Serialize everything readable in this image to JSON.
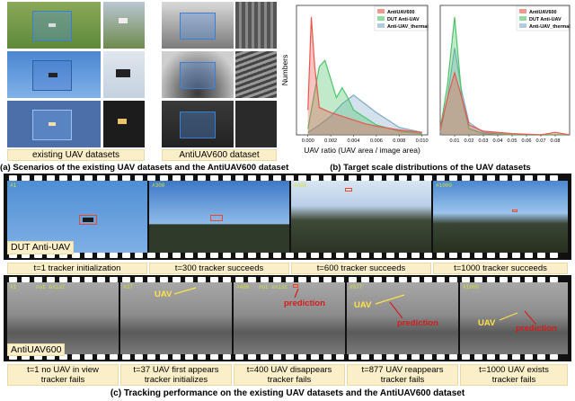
{
  "panel_a": {
    "caption": "(a) Scenarios of the existing UAV datasets and the AntiUAV600 dataset",
    "left_label": "existing UAV datasets",
    "right_label": "AntiUAV600 dataset"
  },
  "panel_b": {
    "caption": "(b) Target scale distributions of the UAV datasets"
  },
  "chart_data": [
    {
      "type": "area",
      "xlabel": "UAV ratio (UAV area / image area)",
      "ylabel": "Numbers",
      "xlim": [
        -0.001,
        0.0105
      ],
      "x_ticks": [
        "0.000",
        "0.002",
        "0.004",
        "0.006",
        "0.008",
        "0.010"
      ],
      "legend": "top-right",
      "series": [
        {
          "name": "AntiUAV600",
          "color": "#e8574d",
          "x": [
            0,
            0.0003,
            0.0006,
            0.001,
            0.002,
            0.003,
            0.004,
            0.005,
            0.006,
            0.008,
            0.01
          ],
          "values": [
            0.2,
            0.95,
            0.55,
            0.22,
            0.18,
            0.15,
            0.12,
            0.09,
            0.07,
            0.04,
            0.02
          ]
        },
        {
          "name": "DUT Anti-UAV",
          "color": "#4cc46b",
          "x": [
            0,
            0.0005,
            0.001,
            0.0015,
            0.002,
            0.0025,
            0.003,
            0.0035,
            0.004,
            0.006,
            0.008,
            0.01
          ],
          "values": [
            0.05,
            0.3,
            0.55,
            0.6,
            0.45,
            0.3,
            0.38,
            0.3,
            0.2,
            0.08,
            0.03,
            0.01
          ]
        },
        {
          "name": "Anti-UAV_thermal",
          "color": "#7fa8c9",
          "x": [
            0,
            0.001,
            0.002,
            0.003,
            0.004,
            0.005,
            0.006,
            0.007,
            0.008,
            0.01
          ],
          "values": [
            0.02,
            0.08,
            0.15,
            0.25,
            0.32,
            0.25,
            0.18,
            0.12,
            0.06,
            0.02
          ]
        }
      ]
    },
    {
      "type": "area",
      "xlim": [
        0.0,
        0.09
      ],
      "x_ticks": [
        "0.01",
        "0.02",
        "0.03",
        "0.04",
        "0.05",
        "0.06",
        "0.07",
        "0.08"
      ],
      "legend": "top-right",
      "series": [
        {
          "name": "AntiUAV600",
          "color": "#e8574d",
          "x": [
            0,
            0.005,
            0.01,
            0.015,
            0.02,
            0.03,
            0.05,
            0.07,
            0.08,
            0.09
          ],
          "values": [
            0.05,
            0.3,
            0.5,
            0.3,
            0.08,
            0.03,
            0.01,
            0.0,
            0.02,
            0.0
          ]
        },
        {
          "name": "DUT Anti-UAV",
          "color": "#4cc46b",
          "x": [
            0,
            0.005,
            0.01,
            0.015,
            0.02,
            0.03,
            0.05,
            0.09
          ],
          "values": [
            0.05,
            0.4,
            0.95,
            0.3,
            0.05,
            0.01,
            0.0,
            0.0
          ]
        },
        {
          "name": "Anti-UAV_thermal",
          "color": "#7fa8c9",
          "x": [
            0,
            0.005,
            0.01,
            0.015,
            0.02,
            0.03,
            0.05,
            0.09
          ],
          "values": [
            0.02,
            0.3,
            0.7,
            0.35,
            0.1,
            0.02,
            0.0,
            0.0
          ]
        }
      ]
    }
  ],
  "panel_c": {
    "caption": "(c) Tracking performance on the existing UAV datasets and the AntiUAV600 dataset",
    "dut_label": "DUT Anti-UAV",
    "anti_label": "AntiUAV600",
    "row1": [
      {
        "frame": "#1",
        "caption": "t=1 tracker initialization"
      },
      {
        "frame": "#300",
        "caption": "t=300 tracker succeeds"
      },
      {
        "frame": "#600",
        "caption": "t=600 tracker succeeds"
      },
      {
        "frame": "#1000",
        "caption": "t=1000 tracker succeeds"
      }
    ],
    "row2": [
      {
        "frame": "#1",
        "tag": "not exist",
        "caption_l1": "t=1 no UAV in view",
        "caption_l2": "tracker fails"
      },
      {
        "frame": "#37",
        "caption_l1": "t=37 UAV first appears",
        "caption_l2": "tracker initializes"
      },
      {
        "frame": "#400",
        "tag": "not exist",
        "caption_l1": "t=400 UAV disappears",
        "caption_l2": "tracker fails"
      },
      {
        "frame": "#877",
        "caption_l1": "t=877 UAV reappears",
        "caption_l2": "tracker fails"
      },
      {
        "frame": "#1000",
        "caption_l1": "t=1000 UAV exists",
        "caption_l2": "tracker fails"
      }
    ],
    "ann_uav": "UAV",
    "ann_prediction": "prediction"
  }
}
